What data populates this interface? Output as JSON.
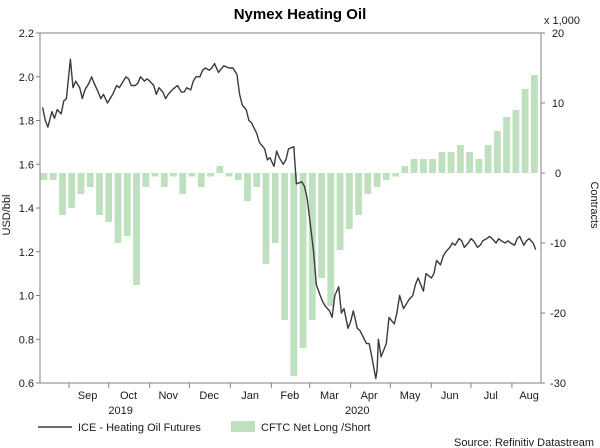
{
  "chart_data": {
    "type": "line+bar",
    "title": "Nymex Heating Oil",
    "y_left_label": "USD/bbl",
    "y_right_label": "Contracts",
    "y_right_multiplier": "x 1,000",
    "y_left_range": [
      0.6,
      2.2
    ],
    "y_left_ticks": [
      "0.6",
      "0.8",
      "1.0",
      "1.2",
      "1.4",
      "1.6",
      "1.8",
      "2.0",
      "2.2"
    ],
    "y_right_range": [
      -30,
      20
    ],
    "y_right_ticks": [
      "-30",
      "-20",
      "-10",
      "0",
      "10",
      "20"
    ],
    "x_month_labels": [
      "Sep",
      "Oct",
      "Nov",
      "Dec",
      "Jan",
      "Feb",
      "Mar",
      "Apr",
      "May",
      "Jun",
      "Jul",
      "Aug"
    ],
    "x_year_labels": [
      "2019",
      "2020"
    ],
    "grid": false,
    "legend_position": "bottom-left",
    "source": "Source: Refinitiv Datastream",
    "series": [
      {
        "name": "ICE - Heating Oil Futures",
        "kind": "line",
        "axis": "left",
        "color": "#3a3a3a",
        "x": [
          "2019-08-12",
          "2019-08-14",
          "2019-08-16",
          "2019-08-19",
          "2019-08-21",
          "2019-08-23",
          "2019-08-26",
          "2019-08-28",
          "2019-08-30",
          "2019-09-02",
          "2019-09-04",
          "2019-09-06",
          "2019-09-09",
          "2019-09-11",
          "2019-09-13",
          "2019-09-16",
          "2019-09-18",
          "2019-09-20",
          "2019-09-23",
          "2019-09-25",
          "2019-09-27",
          "2019-09-30",
          "2019-10-02",
          "2019-10-04",
          "2019-10-07",
          "2019-10-09",
          "2019-10-11",
          "2019-10-14",
          "2019-10-16",
          "2019-10-18",
          "2019-10-21",
          "2019-10-23",
          "2019-10-25",
          "2019-10-28",
          "2019-10-30",
          "2019-11-01",
          "2019-11-04",
          "2019-11-06",
          "2019-11-08",
          "2019-11-11",
          "2019-11-13",
          "2019-11-15",
          "2019-11-18",
          "2019-11-20",
          "2019-11-22",
          "2019-11-25",
          "2019-11-27",
          "2019-11-29",
          "2019-12-02",
          "2019-12-04",
          "2019-12-06",
          "2019-12-09",
          "2019-12-11",
          "2019-12-13",
          "2019-12-16",
          "2019-12-18",
          "2019-12-20",
          "2019-12-23",
          "2019-12-27",
          "2019-12-31",
          "2020-01-03",
          "2020-01-06",
          "2020-01-08",
          "2020-01-10",
          "2020-01-13",
          "2020-01-15",
          "2020-01-17",
          "2020-01-21",
          "2020-01-23",
          "2020-01-27",
          "2020-01-29",
          "2020-01-31",
          "2020-02-03",
          "2020-02-05",
          "2020-02-07",
          "2020-02-10",
          "2020-02-12",
          "2020-02-14",
          "2020-02-18",
          "2020-02-20",
          "2020-02-24",
          "2020-02-26",
          "2020-02-28",
          "2020-03-02",
          "2020-03-04",
          "2020-03-06",
          "2020-03-09",
          "2020-03-11",
          "2020-03-13",
          "2020-03-16",
          "2020-03-18",
          "2020-03-20",
          "2020-03-23",
          "2020-03-25",
          "2020-03-27",
          "2020-03-30",
          "2020-04-01",
          "2020-04-03",
          "2020-04-06",
          "2020-04-08",
          "2020-04-13",
          "2020-04-15",
          "2020-04-17",
          "2020-04-20",
          "2020-04-21",
          "2020-04-22",
          "2020-04-24",
          "2020-04-28",
          "2020-04-30",
          "2020-05-04",
          "2020-05-06",
          "2020-05-08",
          "2020-05-11",
          "2020-05-13",
          "2020-05-15",
          "2020-05-18",
          "2020-05-20",
          "2020-05-22",
          "2020-05-26",
          "2020-05-28",
          "2020-06-01",
          "2020-06-03",
          "2020-06-05",
          "2020-06-08",
          "2020-06-10",
          "2020-06-12",
          "2020-06-15",
          "2020-06-17",
          "2020-06-19",
          "2020-06-22",
          "2020-06-24",
          "2020-06-26",
          "2020-06-29",
          "2020-07-01",
          "2020-07-03",
          "2020-07-06",
          "2020-07-08",
          "2020-07-10",
          "2020-07-13",
          "2020-07-15",
          "2020-07-17",
          "2020-07-20",
          "2020-07-22",
          "2020-07-24",
          "2020-07-27",
          "2020-07-29",
          "2020-07-31",
          "2020-08-03",
          "2020-08-05",
          "2020-08-07",
          "2020-08-10",
          "2020-08-12",
          "2020-08-14",
          "2020-08-17",
          "2020-08-19"
        ],
        "values": [
          1.86,
          1.8,
          1.77,
          1.84,
          1.81,
          1.85,
          1.83,
          1.89,
          1.9,
          2.08,
          1.95,
          1.98,
          1.95,
          1.9,
          1.94,
          1.97,
          2.0,
          1.97,
          1.93,
          1.9,
          1.92,
          1.88,
          1.9,
          1.92,
          1.96,
          1.95,
          1.97,
          2.0,
          1.99,
          1.96,
          1.96,
          1.97,
          2.0,
          1.98,
          1.99,
          1.98,
          1.96,
          1.92,
          1.95,
          1.93,
          1.9,
          1.92,
          1.94,
          1.95,
          1.96,
          1.93,
          1.93,
          1.95,
          1.94,
          1.98,
          2.0,
          2.0,
          2.03,
          2.04,
          2.03,
          2.04,
          2.06,
          2.02,
          2.05,
          2.04,
          2.04,
          2.01,
          1.92,
          1.87,
          1.85,
          1.8,
          1.79,
          1.74,
          1.7,
          1.67,
          1.62,
          1.63,
          1.59,
          1.66,
          1.63,
          1.6,
          1.62,
          1.67,
          1.68,
          1.51,
          1.52,
          1.5,
          1.45,
          1.3,
          1.2,
          1.05,
          1.0,
          0.97,
          0.95,
          0.93,
          0.9,
          1.0,
          1.04,
          0.92,
          0.94,
          0.85,
          0.88,
          0.93,
          0.85,
          0.84,
          0.78,
          0.78,
          0.72,
          0.62,
          0.66,
          0.8,
          0.72,
          0.78,
          0.9,
          0.87,
          0.92,
          1.0,
          0.94,
          0.96,
          0.98,
          1.0,
          1.05,
          1.08,
          1.02,
          1.1,
          1.08,
          1.1,
          1.16,
          1.14,
          1.18,
          1.2,
          1.22,
          1.24,
          1.23,
          1.26,
          1.25,
          1.22,
          1.24,
          1.26,
          1.25,
          1.22,
          1.23,
          1.25,
          1.26,
          1.27,
          1.26,
          1.24,
          1.26,
          1.25,
          1.24,
          1.25,
          1.24,
          1.23,
          1.26,
          1.27,
          1.23,
          1.25,
          1.26,
          1.24,
          1.21
        ]
      },
      {
        "name": "CFTC Net Long /Short",
        "kind": "bar",
        "axis": "right",
        "color": "#bfe0bf",
        "x": [
          "2019-08-13",
          "2019-08-20",
          "2019-08-27",
          "2019-09-03",
          "2019-09-10",
          "2019-09-17",
          "2019-09-24",
          "2019-10-01",
          "2019-10-08",
          "2019-10-15",
          "2019-10-22",
          "2019-10-29",
          "2019-11-05",
          "2019-11-12",
          "2019-11-19",
          "2019-11-26",
          "2019-12-03",
          "2019-12-10",
          "2019-12-17",
          "2019-12-24",
          "2019-12-31",
          "2020-01-07",
          "2020-01-14",
          "2020-01-21",
          "2020-01-28",
          "2020-02-04",
          "2020-02-11",
          "2020-02-18",
          "2020-02-25",
          "2020-03-03",
          "2020-03-10",
          "2020-03-17",
          "2020-03-24",
          "2020-03-31",
          "2020-04-07",
          "2020-04-14",
          "2020-04-21",
          "2020-04-28",
          "2020-05-05",
          "2020-05-12",
          "2020-05-19",
          "2020-05-26",
          "2020-06-02",
          "2020-06-09",
          "2020-06-16",
          "2020-06-23",
          "2020-06-30",
          "2020-07-07",
          "2020-07-14",
          "2020-07-21",
          "2020-07-28",
          "2020-08-04",
          "2020-08-11",
          "2020-08-18"
        ],
        "values": [
          -1,
          -1,
          -6,
          -5,
          -3,
          -2,
          -6,
          -7,
          -10,
          -9,
          -16,
          -2,
          -0.5,
          -2,
          -0.5,
          -3,
          -0.5,
          -2,
          -0.5,
          1,
          -0.5,
          -1,
          -4,
          -2,
          -13,
          -10,
          -21,
          -29,
          -25,
          -21,
          -15,
          -19,
          -11,
          -8,
          -6,
          -3,
          -2,
          -1,
          -0.5,
          1,
          2,
          2,
          2,
          3,
          3,
          4,
          3,
          2,
          4,
          6,
          8,
          9,
          12,
          14
        ]
      }
    ]
  },
  "legend": {
    "line_label": "ICE - Heating Oil Futures",
    "bar_label": "CFTC Net Long /Short"
  }
}
